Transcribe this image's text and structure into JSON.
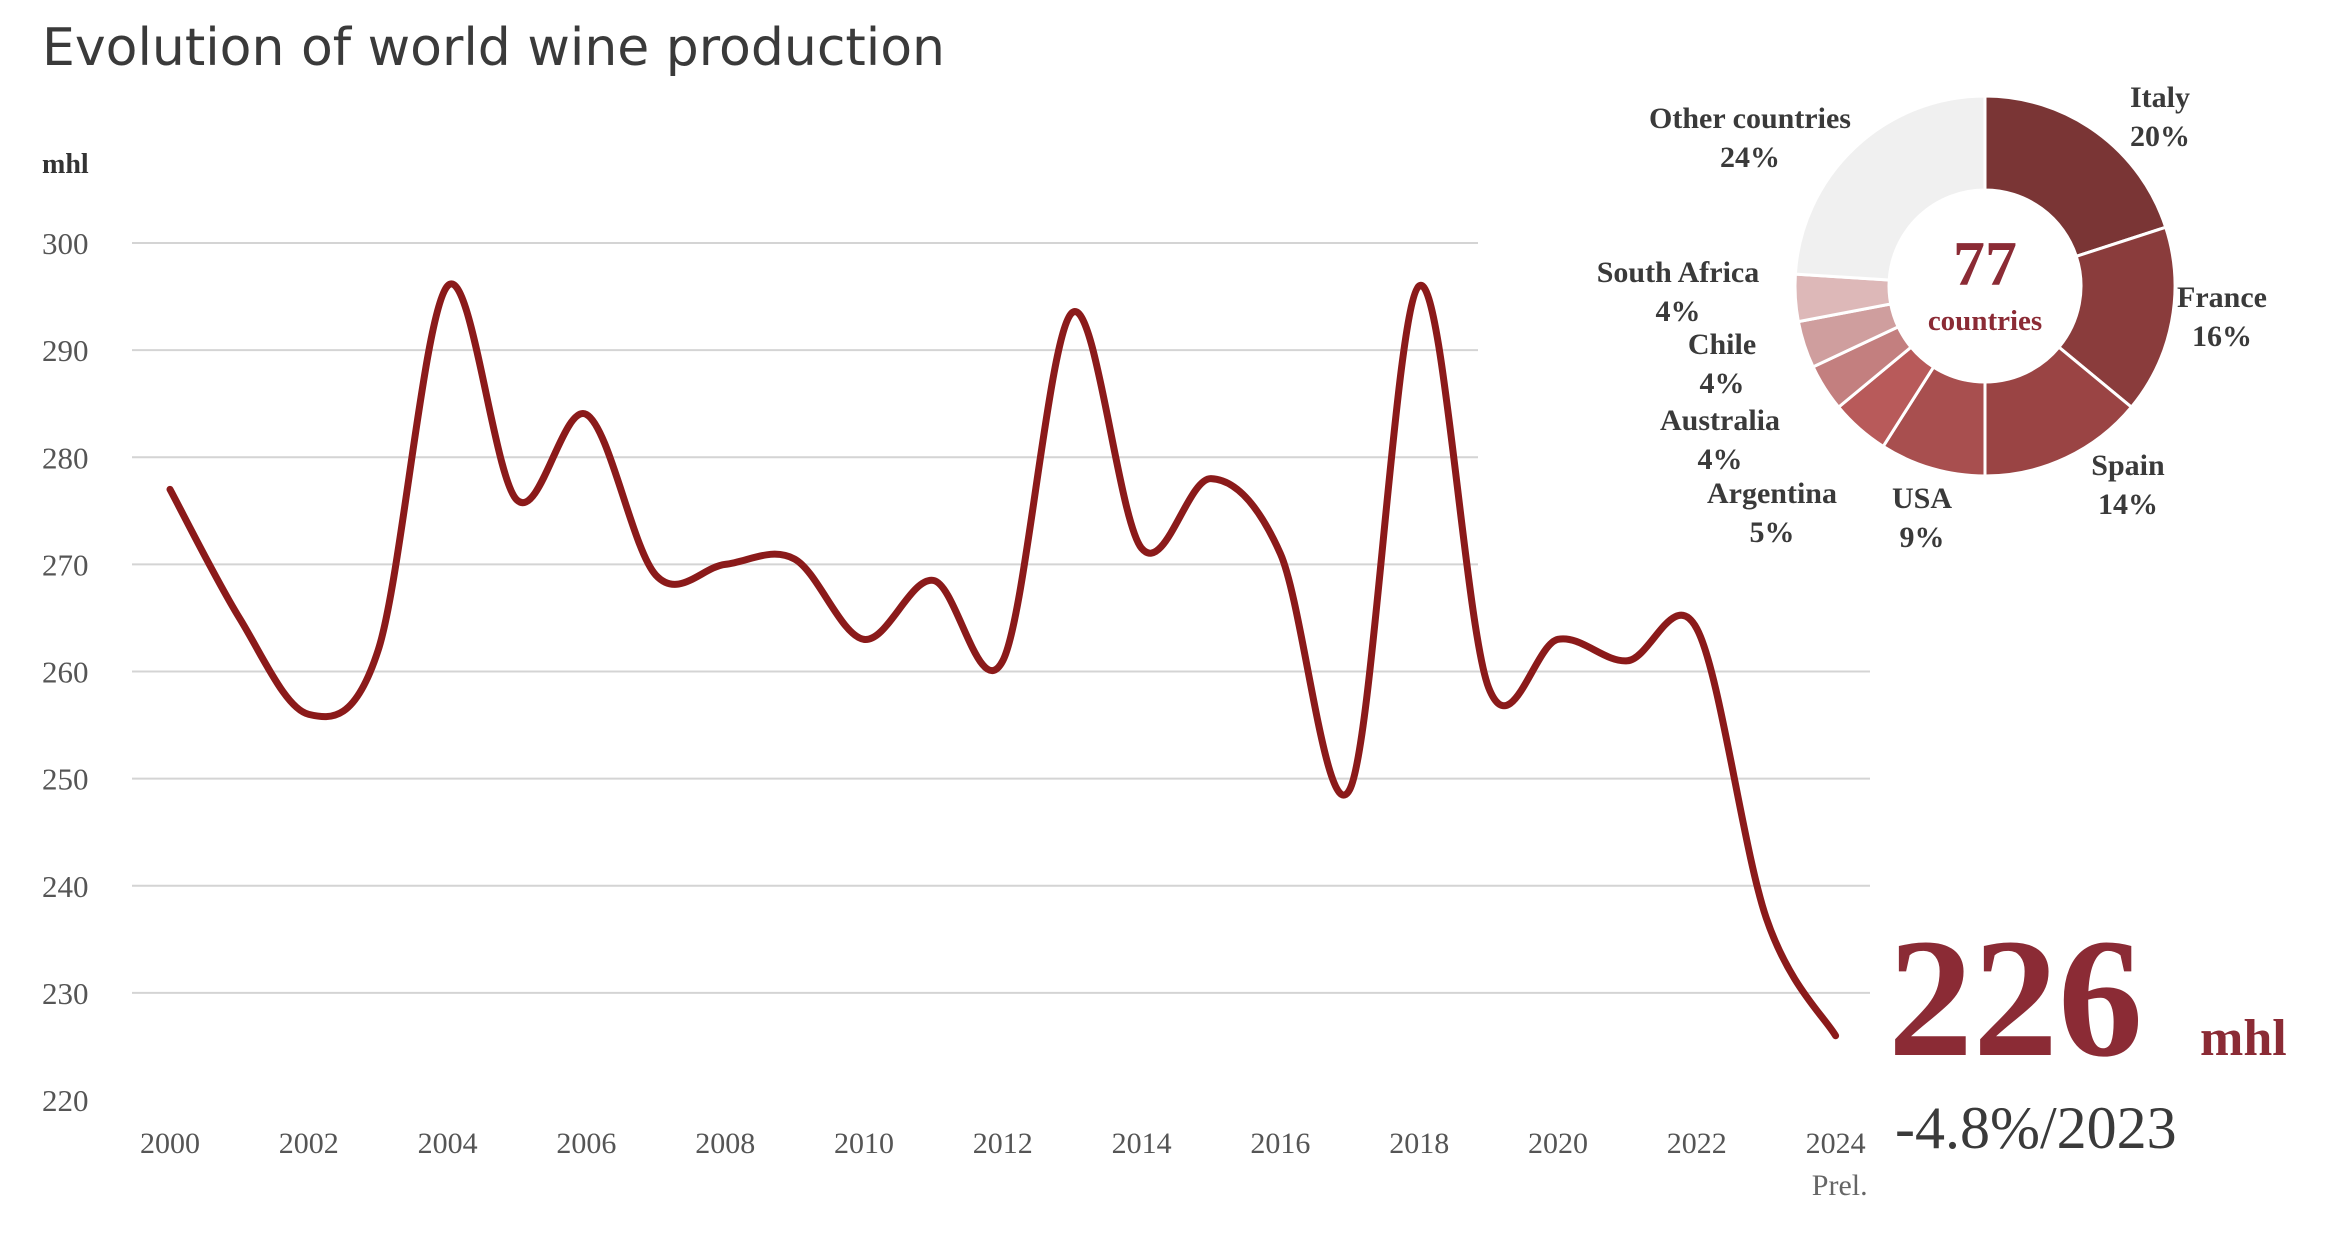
{
  "title": "Evolution of world wine production",
  "y_unit": "mhl",
  "colors": {
    "line": "#8b1a1a",
    "accent": "#8b2b35",
    "grid": "#d4d4d4",
    "other_slice": "#f0f0f0"
  },
  "chart_data": [
    {
      "type": "line",
      "title": "Evolution of world wine production",
      "xlabel": "",
      "ylabel": "mhl",
      "grid": true,
      "ylim": [
        220,
        300
      ],
      "y_ticks": [
        300,
        290,
        280,
        270,
        260,
        250,
        240,
        230,
        220
      ],
      "x_tick_labels": [
        "2000",
        "2002",
        "2004",
        "2006",
        "2008",
        "2010",
        "2012",
        "2014",
        "2016",
        "2018",
        "2020",
        "2022",
        "2024"
      ],
      "x_tick_sublabel": "Prel.",
      "series": [
        {
          "name": "World wine production",
          "x": [
            2000,
            2001,
            2002,
            2003,
            2004,
            2005,
            2006,
            2007,
            2008,
            2009,
            2010,
            2011,
            2012,
            2013,
            2014,
            2015,
            2016,
            2017,
            2018,
            2019,
            2020,
            2021,
            2022,
            2023,
            2024
          ],
          "values": [
            277,
            265,
            256,
            262,
            296,
            276,
            284,
            269,
            270,
            270.5,
            263,
            268.5,
            261,
            293.5,
            271.5,
            278,
            271,
            249,
            296,
            258.5,
            263,
            261,
            264,
            237,
            226
          ]
        }
      ]
    },
    {
      "type": "pie",
      "title": "",
      "center_value": "77",
      "center_label": "countries",
      "slices": [
        {
          "name": "Italy",
          "value": 20,
          "label": "20%",
          "color": "#7a3535"
        },
        {
          "name": "France",
          "value": 16,
          "label": "16%",
          "color": "#8a3c3c"
        },
        {
          "name": "Spain",
          "value": 14,
          "label": "14%",
          "color": "#9a4444"
        },
        {
          "name": "USA",
          "value": 9,
          "label": "9%",
          "color": "#a84f4f"
        },
        {
          "name": "Argentina",
          "value": 5,
          "label": "5%",
          "color": "#b85a5a"
        },
        {
          "name": "Australia",
          "value": 4,
          "label": "4%",
          "color": "#c37f7f"
        },
        {
          "name": "Chile",
          "value": 4,
          "label": "4%",
          "color": "#cf9e9e"
        },
        {
          "name": "South Africa",
          "value": 4,
          "label": "4%",
          "color": "#ddb8b8"
        },
        {
          "name": "Other countries",
          "value": 24,
          "label": "24%",
          "color": "#f0f0f0"
        }
      ]
    }
  ],
  "callout": {
    "value": "226",
    "unit": "mhl",
    "change": "-4.8%/2023"
  }
}
